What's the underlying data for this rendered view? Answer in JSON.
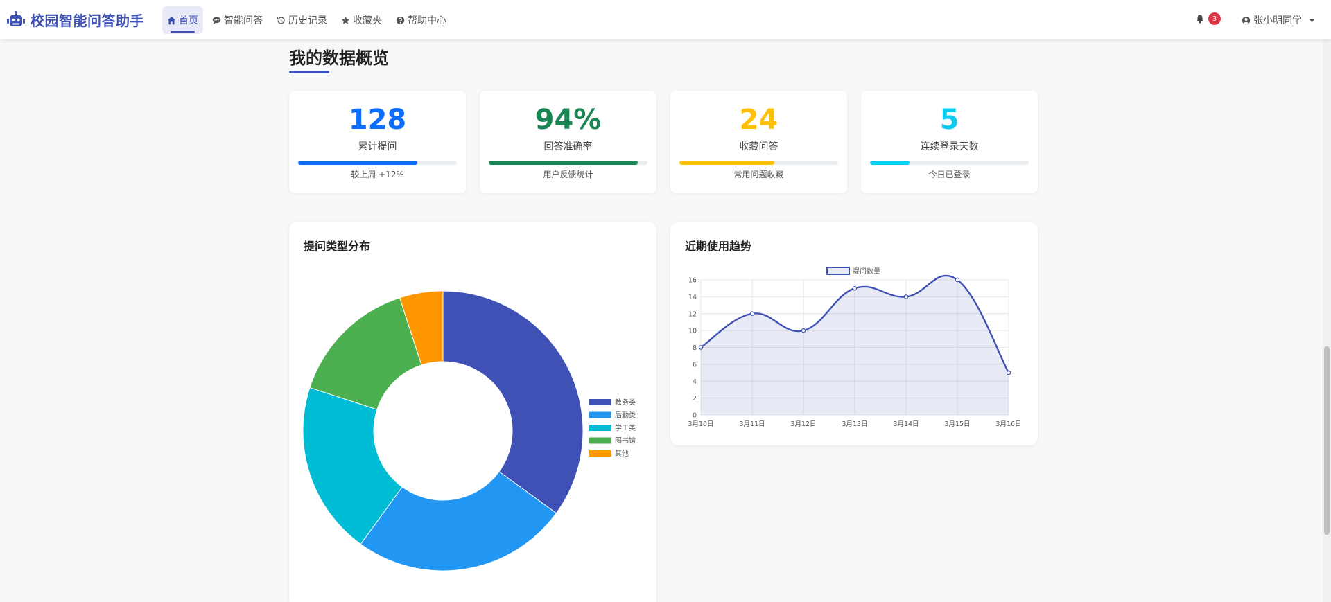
{
  "brand": {
    "title": "校园智能问答助手"
  },
  "nav": [
    {
      "label": "首页",
      "icon": "home-icon",
      "active": true
    },
    {
      "label": "智能问答",
      "icon": "comment-icon",
      "active": false
    },
    {
      "label": "历史记录",
      "icon": "history-icon",
      "active": false
    },
    {
      "label": "收藏夹",
      "icon": "star-icon",
      "active": false
    },
    {
      "label": "帮助中心",
      "icon": "question-circle-icon",
      "active": false
    }
  ],
  "notifications": {
    "count": "3"
  },
  "user": {
    "name": "张小明同学"
  },
  "section": {
    "title": "我的数据概览"
  },
  "stats": [
    {
      "value": "128",
      "label": "累计提问",
      "note": "较上周 +12%",
      "progress": 0.75,
      "color": "#0d6efd"
    },
    {
      "value": "94%",
      "label": "回答准确率",
      "note": "用户反馈统计",
      "progress": 0.94,
      "color": "#198754"
    },
    {
      "value": "24",
      "label": "收藏问答",
      "note": "常用问题收藏",
      "progress": 0.6,
      "color": "#ffc107"
    },
    {
      "value": "5",
      "label": "连续登录天数",
      "note": "今日已登录",
      "progress": 0.25,
      "color": "#0dcaf0"
    }
  ],
  "donut": {
    "title": "提问类型分布",
    "chart_data": {
      "type": "pie",
      "categories": [
        "教务类",
        "后勤类",
        "学工类",
        "图书馆",
        "其他"
      ],
      "values": [
        35,
        25,
        20,
        15,
        5
      ],
      "colors": [
        "#3f51b5",
        "#2196f3",
        "#00bcd4",
        "#4caf50",
        "#ff9800"
      ],
      "legend": "right"
    }
  },
  "trend": {
    "title": "近期使用趋势",
    "chart_data": {
      "type": "line",
      "x": [
        "3月10日",
        "3月11日",
        "3月12日",
        "3月13日",
        "3月14日",
        "3月15日",
        "3月16日"
      ],
      "series": [
        {
          "name": "提问数量",
          "values": [
            8,
            12,
            10,
            15,
            14,
            16,
            5
          ],
          "color": "#3f51b5"
        }
      ],
      "ylim": [
        0,
        16
      ],
      "yticks": [
        0,
        2,
        4,
        6,
        8,
        10,
        12,
        14,
        16
      ],
      "grid": true,
      "legend": "top"
    }
  }
}
